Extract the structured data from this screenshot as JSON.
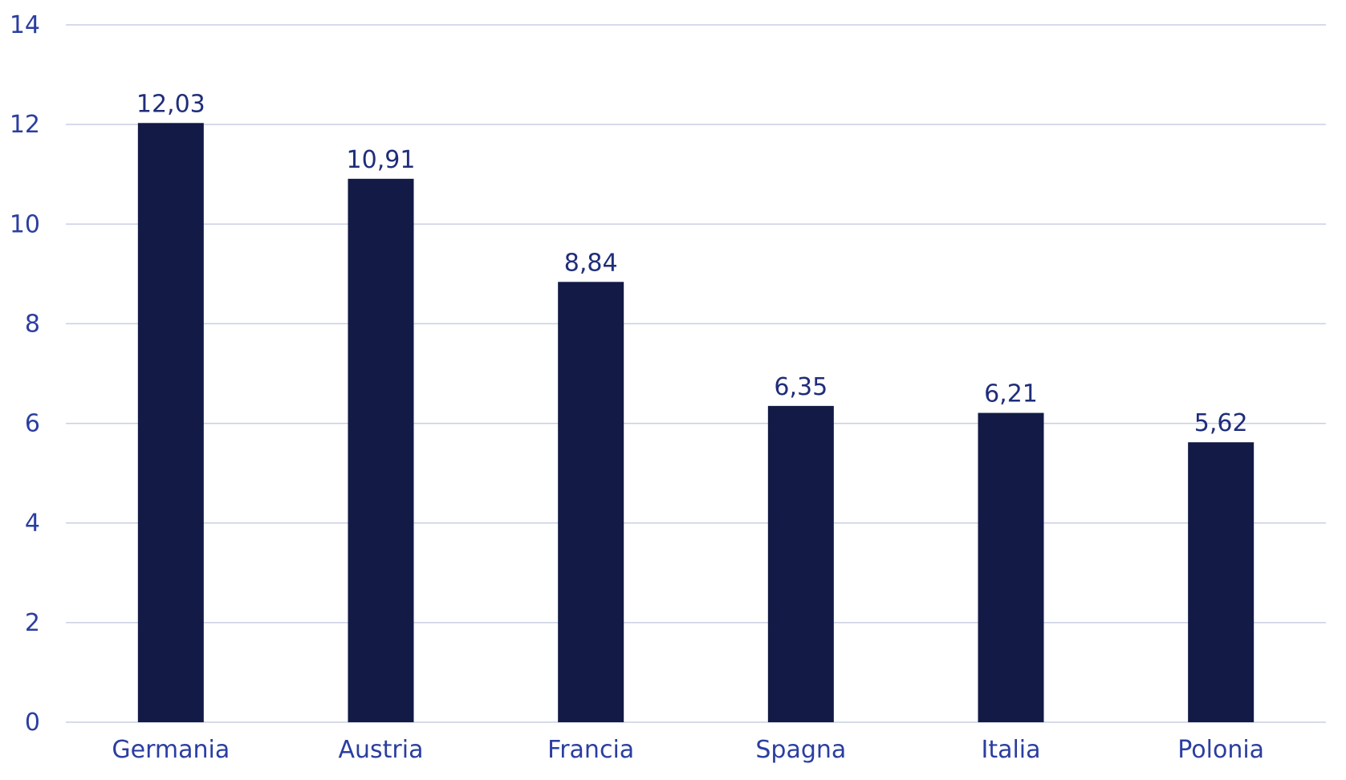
{
  "chart_data": {
    "type": "bar",
    "title": "",
    "xlabel": "",
    "ylabel": "",
    "categories": [
      "Germania",
      "Austria",
      "Francia",
      "Spagna",
      "Italia",
      "Polonia"
    ],
    "values": [
      12.03,
      10.91,
      8.84,
      6.35,
      6.21,
      5.62
    ],
    "value_labels": [
      "12,03",
      "10,91",
      "8,84",
      "6,35",
      "6,21",
      "5,62"
    ],
    "ylim": [
      0,
      14
    ],
    "yticks": [
      0,
      2,
      4,
      6,
      8,
      10,
      12,
      14
    ],
    "ytick_labels": [
      "0",
      "2",
      "4",
      "6",
      "8",
      "10",
      "12",
      "14"
    ],
    "grid": true,
    "legend": "none",
    "colors": {
      "bar": "#121a45",
      "grid": "#c9cfe4",
      "tick_text": "#2b3ea0",
      "value_text": "#1f2d7a"
    }
  }
}
